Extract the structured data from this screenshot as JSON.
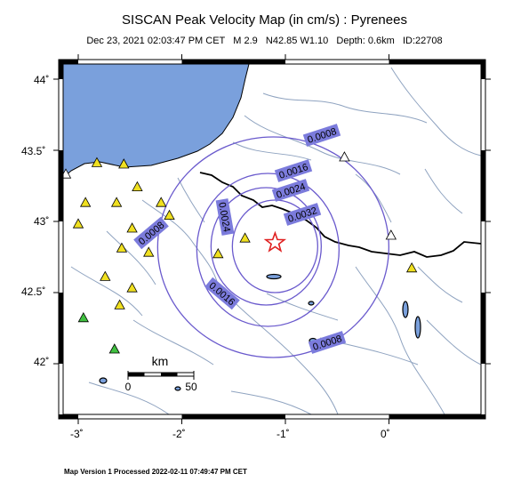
{
  "title": "SISCAN Peak Velocity Map (in cm/s) : Pyrenees",
  "subtitle": "Dec 23, 2021 02:03:47 PM CET   M 2.9   N42.85 W1.10   Depth: 0.6km   ID:22708",
  "footer": "Map Version 1 Processed 2022-02-11 07:49:47 PM CET",
  "axes": {
    "lat_labels": [
      "44˚",
      "43.5˚",
      "43˚",
      "42.5˚",
      "42˚"
    ],
    "lon_labels": [
      "-3˚",
      "-2˚",
      "-1˚",
      "0˚"
    ]
  },
  "scale_bar": {
    "unit": "km",
    "start": "0",
    "end": "50"
  },
  "epicenter": {
    "lat": 42.85,
    "lon": -1.1,
    "marker": "star",
    "color": "#e02020"
  },
  "contours": [
    {
      "label": "0.0008",
      "value": 0.0008
    },
    {
      "label": "0.0016",
      "value": 0.0016
    },
    {
      "label": "0.0024",
      "value": 0.0024
    },
    {
      "label": "0.0032",
      "value": 0.0032
    }
  ],
  "stations": [
    {
      "lat": 43.41,
      "lon": -2.82,
      "color": "yellow"
    },
    {
      "lat": 43.4,
      "lon": -2.56,
      "color": "yellow"
    },
    {
      "lat": 43.24,
      "lon": -2.43,
      "color": "yellow"
    },
    {
      "lat": 43.13,
      "lon": -2.93,
      "color": "yellow"
    },
    {
      "lat": 43.13,
      "lon": -2.63,
      "color": "yellow"
    },
    {
      "lat": 43.13,
      "lon": -2.2,
      "color": "yellow"
    },
    {
      "lat": 43.04,
      "lon": -2.12,
      "color": "yellow"
    },
    {
      "lat": 42.98,
      "lon": -3.0,
      "color": "yellow"
    },
    {
      "lat": 42.95,
      "lon": -2.48,
      "color": "yellow"
    },
    {
      "lat": 42.81,
      "lon": -2.58,
      "color": "yellow"
    },
    {
      "lat": 42.78,
      "lon": -2.32,
      "color": "yellow"
    },
    {
      "lat": 42.77,
      "lon": -1.65,
      "color": "yellow"
    },
    {
      "lat": 42.88,
      "lon": -1.39,
      "color": "yellow"
    },
    {
      "lat": 42.53,
      "lon": -2.48,
      "color": "yellow"
    },
    {
      "lat": 42.61,
      "lon": -2.74,
      "color": "yellow"
    },
    {
      "lat": 42.41,
      "lon": -2.6,
      "color": "yellow"
    },
    {
      "lat": 42.67,
      "lon": 0.22,
      "color": "yellow"
    },
    {
      "lat": 42.32,
      "lon": -2.95,
      "color": "green"
    },
    {
      "lat": 42.1,
      "lon": -2.65,
      "color": "green"
    },
    {
      "lat": 43.45,
      "lon": -0.43,
      "color": "white"
    },
    {
      "lat": 42.9,
      "lon": 0.02,
      "color": "white"
    },
    {
      "lat": 43.33,
      "lon": -3.12,
      "color": "white"
    }
  ],
  "colors": {
    "sea": "#7aa0dc",
    "contour": "#6a5acd",
    "label_bg": "#7b7bdc",
    "rivers": "#8fa3c0",
    "border": "#000000",
    "station_yellow": "#f0e020",
    "station_green": "#40c040",
    "station_white": "#ffffff"
  }
}
